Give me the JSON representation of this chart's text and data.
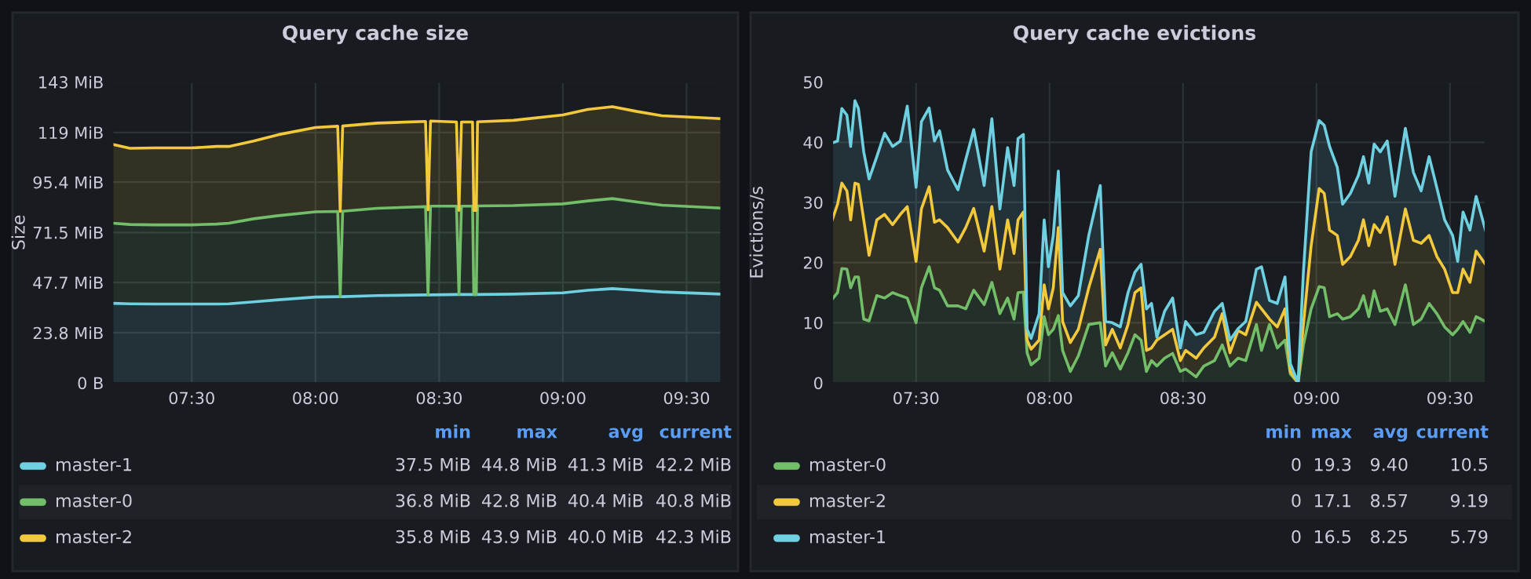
{
  "chart_data": [
    {
      "type": "area",
      "title": "Query cache size",
      "ylabel": "Size",
      "stacked": true,
      "grid": true,
      "legend": "bottom",
      "x": [
        7.18,
        7.25,
        7.35,
        7.5,
        7.6,
        7.65,
        7.75,
        7.85,
        8.0,
        8.09,
        8.1,
        8.11,
        8.25,
        8.445,
        8.455,
        8.465,
        8.57,
        8.58,
        8.59,
        8.635,
        8.64,
        8.65,
        8.655,
        8.8,
        9.0,
        9.1,
        9.2,
        9.3,
        9.4,
        9.64
      ],
      "series": [
        {
          "name": "master-1",
          "color": "#6ed0e0",
          "values": [
            37.8,
            37.6,
            37.5,
            37.5,
            37.5,
            37.6,
            38.5,
            39.5,
            40.8,
            41.0,
            41.0,
            41.0,
            41.5,
            41.8,
            41.8,
            41.8,
            42.0,
            42.0,
            42.0,
            42.0,
            42.0,
            42.0,
            42.0,
            42.2,
            42.8,
            44.0,
            44.8,
            44.0,
            43.2,
            42.2
          ]
        },
        {
          "name": "master-0",
          "color": "#73bf69",
          "values": [
            38.1,
            37.7,
            37.6,
            37.6,
            38.0,
            38.3,
            39.5,
            40.0,
            40.5,
            40.5,
            0,
            40.6,
            41.5,
            42.0,
            0,
            42.2,
            42.0,
            0,
            42.0,
            42.0,
            0,
            0,
            42.1,
            42.1,
            42.3,
            42.5,
            42.8,
            42.0,
            41.3,
            40.9
          ]
        },
        {
          "name": "master-2",
          "color": "#f2c83c",
          "values": [
            37.5,
            36.2,
            36.6,
            36.6,
            36.9,
            36.5,
            37.0,
            38.5,
            40.1,
            40.5,
            40.5,
            40.5,
            40.5,
            40.5,
            40.5,
            40.5,
            40.0,
            40.0,
            40.0,
            40.0,
            40.0,
            40.0,
            40.0,
            40.5,
            42.3,
            43.5,
            43.7,
            43.0,
            42.5,
            42.5
          ]
        }
      ],
      "xlim": [
        7.18,
        9.64
      ],
      "xticks": [
        {
          "value": 7.5,
          "label": "07:30"
        },
        {
          "value": 8.0,
          "label": "08:00"
        },
        {
          "value": 8.5,
          "label": "08:30"
        },
        {
          "value": 9.0,
          "label": "09:00"
        },
        {
          "value": 9.5,
          "label": "09:30"
        }
      ],
      "ylim": [
        0,
        143
      ],
      "yticks": [
        {
          "value": 0,
          "label": "0 B"
        },
        {
          "value": 23.8,
          "label": "23.8 MiB"
        },
        {
          "value": 47.7,
          "label": "47.7 MiB"
        },
        {
          "value": 71.5,
          "label": "71.5 MiB"
        },
        {
          "value": 95.4,
          "label": "95.4 MiB"
        },
        {
          "value": 119,
          "label": "119 MiB"
        },
        {
          "value": 143,
          "label": "143 MiB"
        }
      ],
      "annotations": [
        "min",
        "max",
        "avg",
        "current",
        "37.5 MiB",
        "44.8 MiB",
        "41.3 MiB",
        "42.2 MiB",
        "36.8 MiB",
        "42.8 MiB",
        "40.4 MiB",
        "40.8 MiB",
        "35.8 MiB",
        "43.9 MiB",
        "40.0 MiB",
        "42.3 MiB"
      ]
    },
    {
      "type": "area",
      "title": "Query cache evictions",
      "ylabel": "Evictions/s",
      "stacked": true,
      "grid": true,
      "legend": "bottom",
      "x": [
        7.186,
        7.206,
        7.222,
        7.241,
        7.255,
        7.271,
        7.284,
        7.304,
        7.324,
        7.353,
        7.382,
        7.412,
        7.441,
        7.467,
        7.5,
        7.52,
        7.549,
        7.569,
        7.588,
        7.618,
        7.657,
        7.686,
        7.716,
        7.755,
        7.784,
        7.814,
        7.843,
        7.867,
        7.882,
        7.902,
        7.916,
        7.931,
        7.961,
        7.98,
        7.996,
        8.014,
        8.033,
        8.049,
        8.078,
        8.108,
        8.147,
        8.19,
        8.21,
        8.235,
        8.265,
        8.294,
        8.32,
        8.343,
        8.363,
        8.382,
        8.402,
        8.431,
        8.461,
        8.49,
        8.51,
        8.549,
        8.578,
        8.618,
        8.647,
        8.676,
        8.706,
        8.735,
        8.775,
        8.794,
        8.824,
        8.853,
        8.882,
        8.902,
        8.931,
        8.951,
        8.98,
        9.01,
        9.029,
        9.049,
        9.078,
        9.098,
        9.127,
        9.157,
        9.176,
        9.196,
        9.216,
        9.239,
        9.265,
        9.294,
        9.333,
        9.363,
        9.392,
        9.422,
        9.451,
        9.48,
        9.51,
        9.529,
        9.549,
        9.575,
        9.598,
        9.633
      ],
      "series": [
        {
          "name": "master-0",
          "color": "#73bf69",
          "values": [
            13.9,
            15,
            19,
            18.9,
            15.8,
            17.6,
            17.6,
            10.6,
            10.3,
            14.5,
            14.1,
            15,
            14.5,
            14.1,
            10,
            15.8,
            19.3,
            15.8,
            15.4,
            12.8,
            12.8,
            12.3,
            15.4,
            13,
            16.7,
            11.5,
            14.1,
            10.6,
            15,
            15.1,
            5,
            3,
            4.1,
            11,
            8,
            8.9,
            11.2,
            5.4,
            1.9,
            4.5,
            9.7,
            10,
            2.8,
            5,
            2.3,
            5,
            8,
            7.1,
            1.9,
            3.7,
            2.8,
            4.1,
            4.9,
            1.9,
            2.3,
            1,
            2.8,
            3.7,
            6.3,
            2.8,
            4.1,
            3.7,
            9.7,
            5.4,
            9.7,
            5.8,
            7.1,
            1.5,
            0,
            6.3,
            12.3,
            16,
            15.8,
            11,
            11.5,
            10.6,
            11,
            12.3,
            14.5,
            11,
            15.3,
            11.9,
            12.3,
            9.7,
            16.3,
            9.7,
            10.6,
            13.2,
            11.5,
            9.3,
            8,
            8.9,
            10.2,
            8.4,
            11,
            10.2
          ]
        },
        {
          "name": "master-2",
          "color": "#f2c83c",
          "values": [
            13.2,
            14.7,
            14.2,
            13,
            11.3,
            15.6,
            15.4,
            16.5,
            10.9,
            12.6,
            13.9,
            11.3,
            13.5,
            15.2,
            10.2,
            13.1,
            13.3,
            10.9,
            11.7,
            13,
            10.6,
            13.5,
            13.6,
            8.9,
            12.6,
            7.4,
            13,
            10.9,
            12.1,
            13.3,
            2.1,
            2.6,
            3,
            5.3,
            4.3,
            6.9,
            14.6,
            4.8,
            4.8,
            4.4,
            6.1,
            12.2,
            3.5,
            3.9,
            3.5,
            4.7,
            7,
            8.7,
            3.5,
            2.1,
            4.3,
            3.9,
            4,
            1.8,
            3.1,
            3.1,
            3,
            3.9,
            5.2,
            2.2,
            4.6,
            4.3,
            3.7,
            6.9,
            0.9,
            3.5,
            5.2,
            0.4,
            0,
            3.4,
            10.5,
            16.3,
            15.7,
            14.4,
            13,
            9.1,
            10,
            11.4,
            12.6,
            11.8,
            11,
            13.1,
            15.3,
            10,
            12.6,
            14,
            12.6,
            11.3,
            9.5,
            9.6,
            7,
            6.1,
            8.7,
            8.3,
            10.9,
            9.5
          ]
        },
        {
          "name": "master-1",
          "color": "#6ed0e0",
          "values": [
            12.8,
            10.5,
            12.4,
            12.6,
            12.2,
            13.7,
            12.6,
            11.3,
            12.7,
            10.5,
            13.5,
            13,
            12.2,
            16.7,
            12.3,
            14.5,
            13.1,
            13.5,
            14.8,
            9.6,
            8.7,
            11.3,
            13.1,
            10.9,
            14.6,
            10,
            12,
            11.3,
            13.5,
            12.9,
            1.8,
            1.8,
            4.4,
            10.8,
            7,
            8.7,
            9.4,
            4.8,
            6.1,
            5.6,
            8.7,
            10.6,
            3.9,
            1.1,
            3.5,
            5.3,
            3.4,
            3.9,
            6.9,
            7.4,
            0.5,
            3.9,
            5.2,
            2.1,
            4.8,
            3.9,
            2.6,
            4.3,
            1.7,
            2.1,
            0.3,
            2.2,
            5.5,
            7,
            3.1,
            3.9,
            5.3,
            1.3,
            0,
            8.7,
            15.6,
            11.3,
            11.3,
            13.9,
            11.3,
            10,
            10.5,
            10.8,
            10.5,
            10.4,
            13.4,
            13.4,
            12.6,
            11.3,
            13.4,
            11.3,
            8.7,
            13.1,
            11.4,
            8.2,
            9.5,
            5.2,
            9.5,
            8.7,
            9.1,
            5.7
          ]
        }
      ],
      "xlim": [
        7.186,
        9.633
      ],
      "xticks": [
        {
          "value": 7.5,
          "label": "07:30"
        },
        {
          "value": 8.0,
          "label": "08:00"
        },
        {
          "value": 8.5,
          "label": "08:30"
        },
        {
          "value": 9.0,
          "label": "09:00"
        },
        {
          "value": 9.5,
          "label": "09:30"
        }
      ],
      "ylim": [
        0,
        50
      ],
      "yticks": [
        0,
        10,
        20,
        30,
        40,
        50
      ],
      "annotations": [
        "min",
        "max",
        "avg",
        "current",
        "0",
        "19.3",
        "9.40",
        "10.5",
        "0",
        "17.1",
        "8.57",
        "9.19",
        "0",
        "16.5",
        "8.25",
        "5.79"
      ]
    }
  ]
}
